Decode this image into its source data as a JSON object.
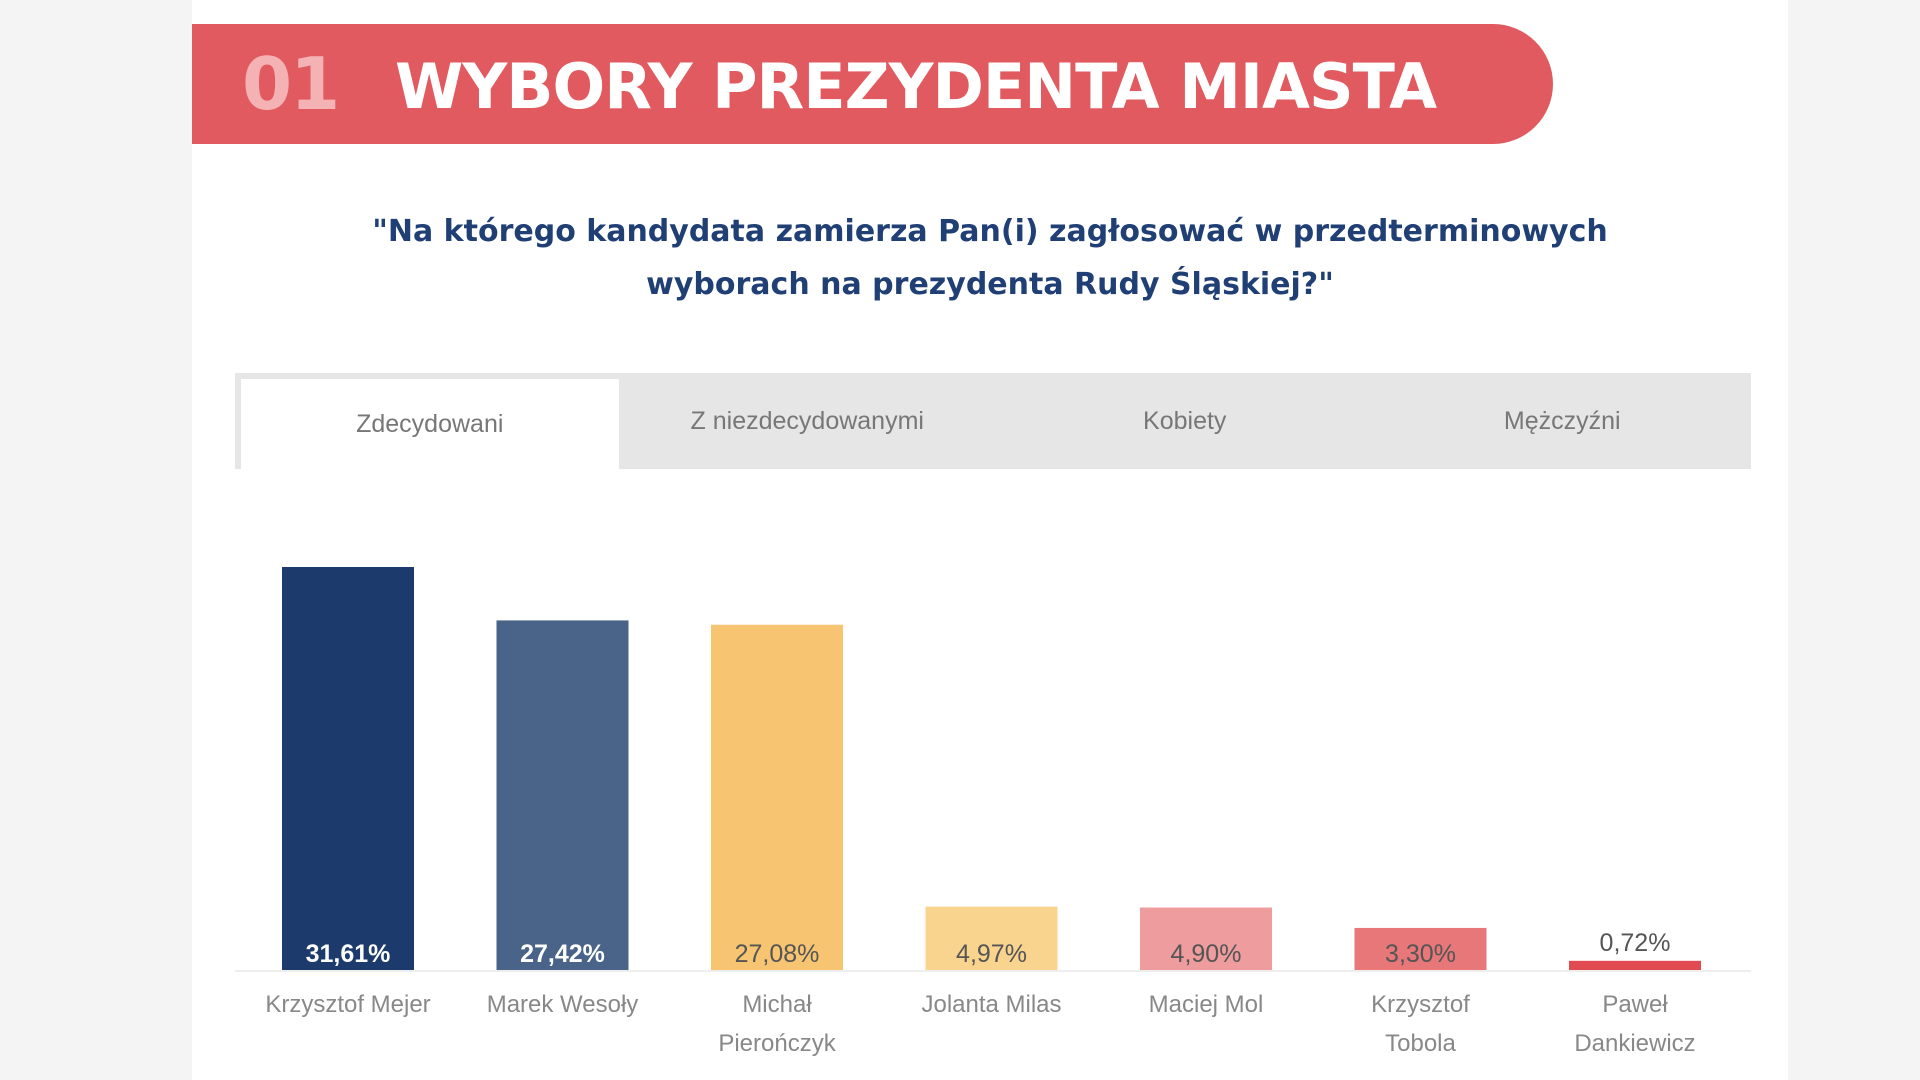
{
  "header": {
    "number": "01",
    "title": "WYBORY PREZYDENTA MIASTA"
  },
  "question": {
    "line1": "\"Na którego kandydata zamierza Pan(i) zagłosować w przedterminowych",
    "line2": "wyborach na prezydenta Rudy Śląskiej?\""
  },
  "tabs": [
    {
      "label": "Zdecydowani",
      "active": true
    },
    {
      "label": "Z niezdecydowanymi"
    },
    {
      "label": "Kobiety"
    },
    {
      "label": "Mężczyźni"
    }
  ],
  "colors": {
    "banner": "#e15a60",
    "question": "#1f3f75"
  },
  "chart_data": {
    "type": "bar",
    "categories": [
      [
        "Krzysztof Mejer"
      ],
      [
        "Marek Wesoły"
      ],
      [
        "Michał",
        "Pierończyk"
      ],
      [
        "Jolanta Milas"
      ],
      [
        "Maciej Mol"
      ],
      [
        "Krzysztof",
        "Tobola"
      ],
      [
        "Paweł",
        "Dankiewicz"
      ]
    ],
    "values": [
      31.61,
      27.42,
      27.08,
      4.97,
      4.9,
      3.3,
      0.72
    ],
    "value_labels": [
      "31,61%",
      "27,42%",
      "27,08%",
      "4,97%",
      "4,90%",
      "3,30%",
      "0,72%"
    ],
    "colors": [
      "#1c3a6b",
      "#4a6389",
      "#f7c572",
      "#f9d48e",
      "#ee9c9e",
      "#e8777a",
      "#e04a50"
    ],
    "ylim": [
      0,
      32
    ],
    "grid": false
  }
}
